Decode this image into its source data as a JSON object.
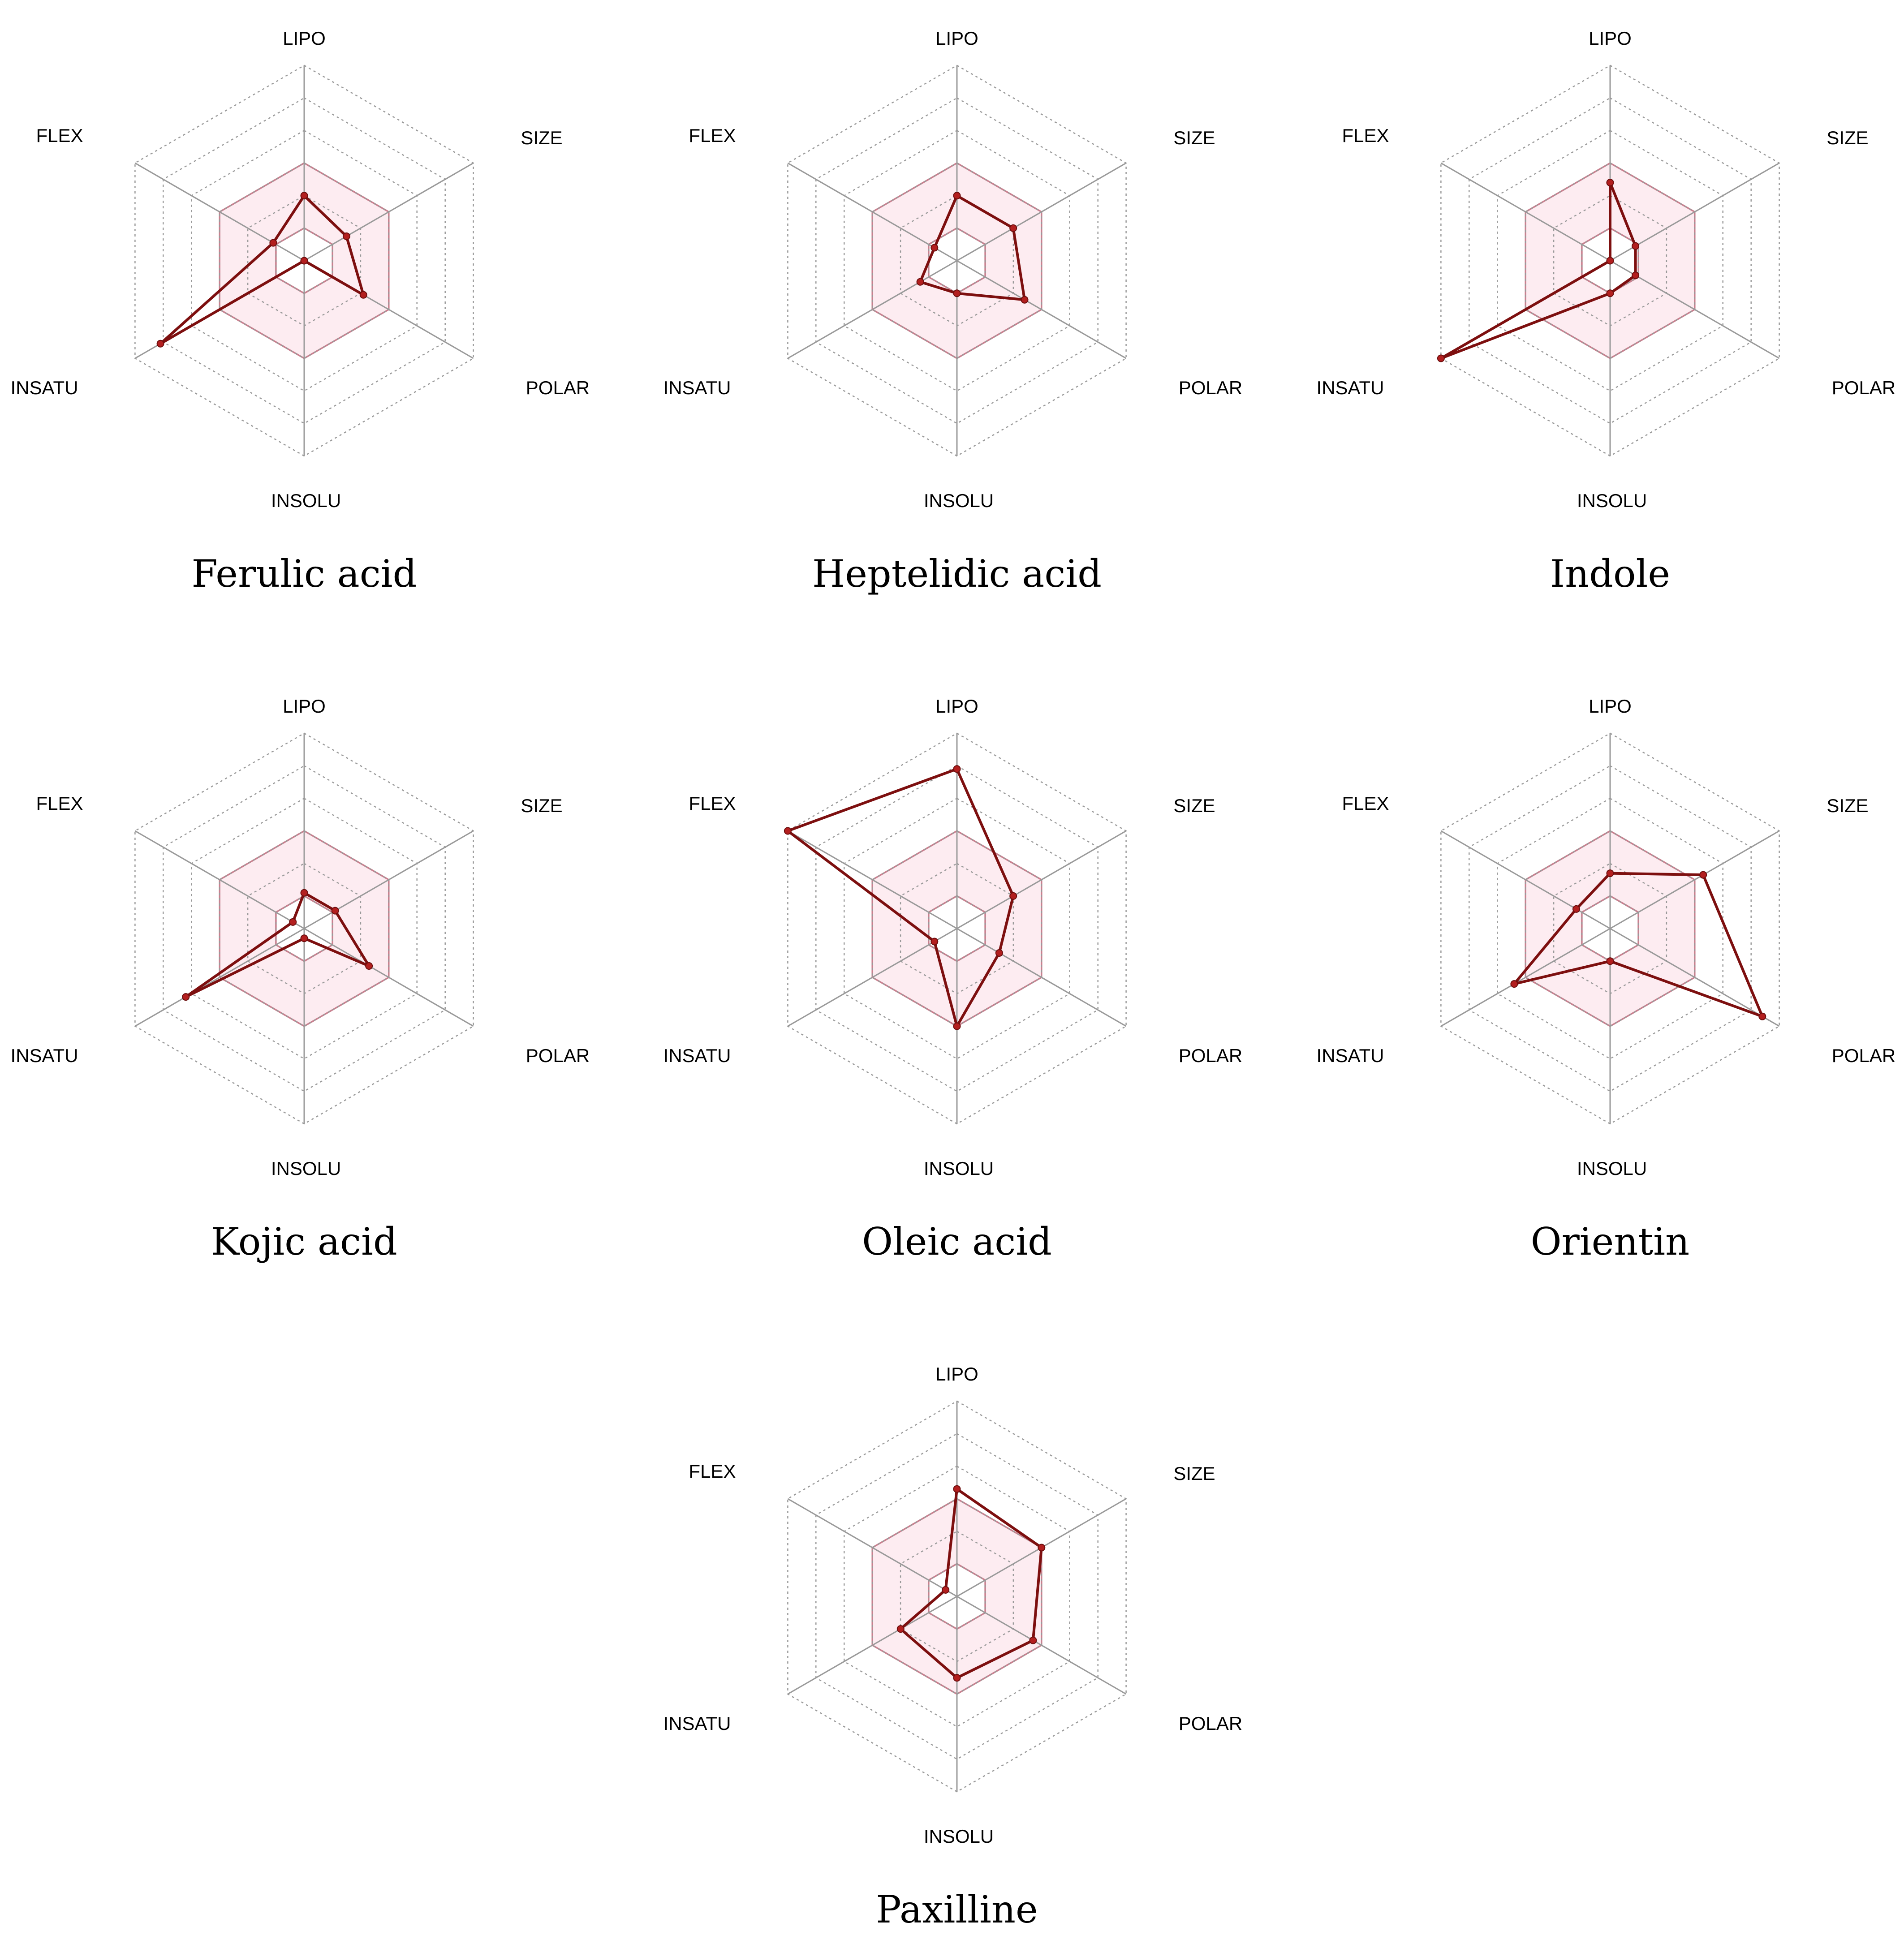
{
  "colors": {
    "series_line": "#7d0f0f",
    "series_point": "#b31f1f",
    "optimal_fill": "#fdecf1",
    "optimal_border": "#c9808f",
    "grid": "#9a9a9a"
  },
  "chart_data": [
    {
      "type": "radar",
      "title": "Ferulic acid",
      "axes": [
        "LIPO",
        "SIZE",
        "POLAR",
        "INSOLU",
        "INSATU",
        "FLEX"
      ],
      "scale_range": [
        0,
        1
      ],
      "optimal_range": [
        0.167,
        0.5
      ],
      "values": [
        0.333,
        0.25,
        0.35,
        0.0,
        0.85,
        0.183
      ]
    },
    {
      "type": "radar",
      "title": "Heptelidic acid",
      "axes": [
        "LIPO",
        "SIZE",
        "POLAR",
        "INSOLU",
        "INSATU",
        "FLEX"
      ],
      "scale_range": [
        0,
        1
      ],
      "optimal_range": [
        0.167,
        0.5
      ],
      "values": [
        0.333,
        0.333,
        0.4,
        0.167,
        0.217,
        0.133
      ]
    },
    {
      "type": "radar",
      "title": "Indole",
      "axes": [
        "LIPO",
        "SIZE",
        "POLAR",
        "INSOLU",
        "INSATU",
        "FLEX"
      ],
      "scale_range": [
        0,
        1
      ],
      "optimal_range": [
        0.167,
        0.5
      ],
      "values": [
        0.4,
        0.15,
        0.15,
        0.167,
        1.0,
        0.0
      ]
    },
    {
      "type": "radar",
      "title": "Kojic acid",
      "axes": [
        "LIPO",
        "SIZE",
        "POLAR",
        "INSOLU",
        "INSATU",
        "FLEX"
      ],
      "scale_range": [
        0,
        1
      ],
      "optimal_range": [
        0.167,
        0.5
      ],
      "values": [
        0.183,
        0.183,
        0.383,
        0.05,
        0.7,
        0.067
      ]
    },
    {
      "type": "radar",
      "title": "Oleic acid",
      "axes": [
        "LIPO",
        "SIZE",
        "POLAR",
        "INSOLU",
        "INSATU",
        "FLEX"
      ],
      "scale_range": [
        0,
        1
      ],
      "optimal_range": [
        0.167,
        0.5
      ],
      "values": [
        0.817,
        0.333,
        0.25,
        0.5,
        0.133,
        1.0
      ]
    },
    {
      "type": "radar",
      "title": "Orientin",
      "axes": [
        "LIPO",
        "SIZE",
        "POLAR",
        "INSOLU",
        "INSATU",
        "FLEX"
      ],
      "scale_range": [
        0,
        1
      ],
      "optimal_range": [
        0.167,
        0.5
      ],
      "values": [
        0.283,
        0.55,
        0.9,
        0.167,
        0.567,
        0.2
      ]
    },
    {
      "type": "radar",
      "title": "Paxilline",
      "axes": [
        "LIPO",
        "SIZE",
        "POLAR",
        "INSOLU",
        "INSATU",
        "FLEX"
      ],
      "scale_range": [
        0,
        1
      ],
      "optimal_range": [
        0.167,
        0.5
      ],
      "values": [
        0.55,
        0.5,
        0.45,
        0.417,
        0.333,
        0.067
      ]
    }
  ]
}
